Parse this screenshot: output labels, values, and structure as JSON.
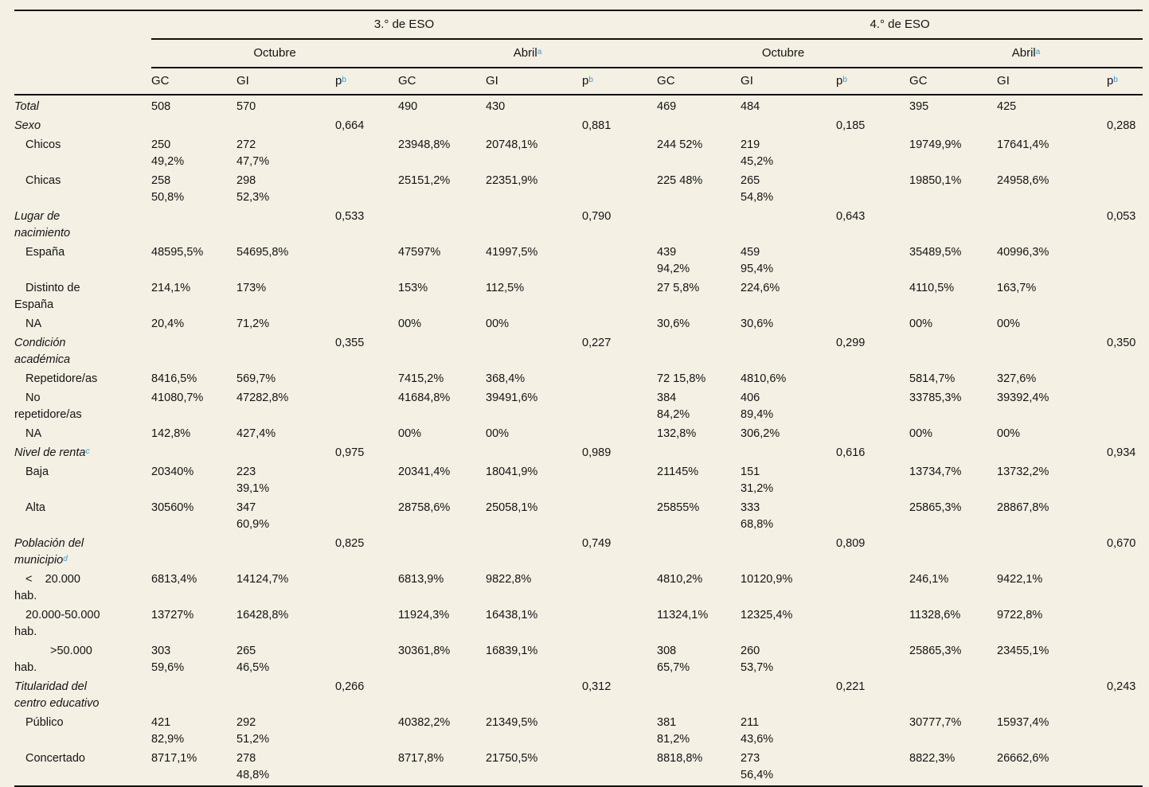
{
  "colors": {
    "background": "#f4f0e4",
    "footnote_blue": "#2f9fda",
    "rule_color": "#111111"
  },
  "table": {
    "groups": [
      {
        "label": "3.° de ESO"
      },
      {
        "label": "4.° de ESO"
      }
    ],
    "periods": [
      {
        "label": "Octubre",
        "sup": ""
      },
      {
        "label": "Abril",
        "sup": "a"
      },
      {
        "label": "Octubre",
        "sup": ""
      },
      {
        "label": "Abril",
        "sup": "a"
      }
    ],
    "subcols": {
      "gc": "GC",
      "gi": "GI",
      "p": "p",
      "p_sup": "b"
    },
    "rows": [
      {
        "label": "Total",
        "sup": "",
        "italic": true,
        "indent": 0,
        "cells": [
          "508",
          "570",
          "",
          "490",
          "430",
          "",
          "469",
          "484",
          "",
          "395",
          "425",
          ""
        ]
      },
      {
        "label": "Sexo",
        "sup": "",
        "italic": true,
        "indent": 0,
        "cells": [
          "",
          "",
          "0,664",
          "",
          "",
          "0,881",
          "",
          "",
          "0,185",
          "",
          "",
          "0,288"
        ]
      },
      {
        "label": "Chicos",
        "sup": "",
        "italic": false,
        "indent": 1,
        "cells": [
          "250\n49,2%",
          "272\n47,7%",
          "",
          "23948,8%",
          "20748,1%",
          "",
          "244 52%",
          "219\n45,2%",
          "",
          "19749,9%",
          "17641,4%",
          ""
        ]
      },
      {
        "label": "Chicas",
        "sup": "",
        "italic": false,
        "indent": 1,
        "cells": [
          "258\n50,8%",
          "298\n52,3%",
          "",
          "25151,2%",
          "22351,9%",
          "",
          "225 48%",
          "265\n54,8%",
          "",
          "19850,1%",
          "24958,6%",
          ""
        ]
      },
      {
        "label": "Lugar de\nnacimiento",
        "sup": "",
        "italic": true,
        "indent": 0,
        "cells": [
          "",
          "",
          "0,533",
          "",
          "",
          "0,790",
          "",
          "",
          "0,643",
          "",
          "",
          "0,053"
        ]
      },
      {
        "label": "España",
        "sup": "",
        "italic": false,
        "indent": 1,
        "cells": [
          "48595,5%",
          "54695,8%",
          "",
          "47597%",
          "41997,5%",
          "",
          "439\n94,2%",
          "459\n95,4%",
          "",
          "35489,5%",
          "40996,3%",
          ""
        ]
      },
      {
        "label": "Distinto de\nEspaña",
        "sup": "",
        "italic": false,
        "indent": 1,
        "cells": [
          "214,1%",
          "173%",
          "",
          "153%",
          "112,5%",
          "",
          "27 5,8%",
          "224,6%",
          "",
          "4110,5%",
          "163,7%",
          ""
        ]
      },
      {
        "label": "NA",
        "sup": "",
        "italic": false,
        "indent": 1,
        "cells": [
          "20,4%",
          "71,2%",
          "",
          "00%",
          "00%",
          "",
          "30,6%",
          "30,6%",
          "",
          "00%",
          "00%",
          ""
        ]
      },
      {
        "label": "Condición\nacadémica",
        "sup": "",
        "italic": true,
        "indent": 0,
        "cells": [
          "",
          "",
          "0,355",
          "",
          "",
          "0,227",
          "",
          "",
          "0,299",
          "",
          "",
          "0,350"
        ]
      },
      {
        "label": "Repetidore/as",
        "sup": "",
        "italic": false,
        "indent": 1,
        "cells": [
          "8416,5%",
          "569,7%",
          "",
          "7415,2%",
          "368,4%",
          "",
          "72 15,8%",
          "4810,6%",
          "",
          "5814,7%",
          "327,6%",
          ""
        ]
      },
      {
        "label": "No\nrepetidore/as",
        "sup": "",
        "italic": false,
        "indent": 1,
        "cells": [
          "41080,7%",
          "47282,8%",
          "",
          "41684,8%",
          "39491,6%",
          "",
          "384\n84,2%",
          "406\n89,4%",
          "",
          "33785,3%",
          "39392,4%",
          ""
        ]
      },
      {
        "label": "NA",
        "sup": "",
        "italic": false,
        "indent": 1,
        "cells": [
          "142,8%",
          "427,4%",
          "",
          "00%",
          "00%",
          "",
          "132,8%",
          "306,2%",
          "",
          "00%",
          "00%",
          ""
        ]
      },
      {
        "label": "Nivel de renta",
        "sup": "c",
        "italic": true,
        "indent": 0,
        "cells": [
          "",
          "",
          "0,975",
          "",
          "",
          "0,989",
          "",
          "",
          "0,616",
          "",
          "",
          "0,934"
        ]
      },
      {
        "label": "Baja",
        "sup": "",
        "italic": false,
        "indent": 1,
        "cells": [
          "20340%",
          "223\n39,1%",
          "",
          "20341,4%",
          "18041,9%",
          "",
          "21145%",
          "151\n31,2%",
          "",
          "13734,7%",
          "13732,2%",
          ""
        ]
      },
      {
        "label": "Alta",
        "sup": "",
        "italic": false,
        "indent": 1,
        "cells": [
          "30560%",
          "347\n60,9%",
          "",
          "28758,6%",
          "25058,1%",
          "",
          "25855%",
          "333\n68,8%",
          "",
          "25865,3%",
          "28867,8%",
          ""
        ]
      },
      {
        "label": "Población del\nmunicipio",
        "sup": "d",
        "italic": true,
        "indent": 0,
        "cells": [
          "",
          "",
          "0,825",
          "",
          "",
          "0,749",
          "",
          "",
          "0,809",
          "",
          "",
          "0,670"
        ]
      },
      {
        "label": "<    20.000\nhab.",
        "sup": "",
        "italic": false,
        "indent": 1,
        "cells": [
          "6813,4%",
          "14124,7%",
          "",
          "6813,9%",
          "9822,8%",
          "",
          "4810,2%",
          "10120,9%",
          "",
          "246,1%",
          "9422,1%",
          ""
        ]
      },
      {
        "label": "20.000-50.000\nhab.",
        "sup": "",
        "italic": false,
        "indent": 1,
        "cells": [
          "13727%",
          "16428,8%",
          "",
          "11924,3%",
          "16438,1%",
          "",
          "11324,1%",
          "12325,4%",
          "",
          "11328,6%",
          "9722,8%",
          ""
        ]
      },
      {
        "label": ">50.000\nhab.",
        "sup": "",
        "italic": false,
        "indent": 2,
        "cells": [
          "303\n59,6%",
          "265\n46,5%",
          "",
          "30361,8%",
          "16839,1%",
          "",
          "308\n65,7%",
          "260\n53,7%",
          "",
          "25865,3%",
          "23455,1%",
          ""
        ]
      },
      {
        "label": "Titularidad del\ncentro educativo",
        "sup": "",
        "italic": true,
        "indent": 0,
        "cells": [
          "",
          "",
          "0,266",
          "",
          "",
          "0,312",
          "",
          "",
          "0,221",
          "",
          "",
          "0,243"
        ]
      },
      {
        "label": "Público",
        "sup": "",
        "italic": false,
        "indent": 1,
        "cells": [
          "421\n82,9%",
          "292\n51,2%",
          "",
          "40382,2%",
          "21349,5%",
          "",
          "381\n81,2%",
          "211\n43,6%",
          "",
          "30777,7%",
          "15937,4%",
          ""
        ]
      },
      {
        "label": "Concertado",
        "sup": "",
        "italic": false,
        "indent": 1,
        "cells": [
          "8717,1%",
          "278\n48,8%",
          "",
          "8717,8%",
          "21750,5%",
          "",
          "8818,8%",
          "273\n56,4%",
          "",
          "8822,3%",
          "26662,6%",
          ""
        ]
      }
    ]
  }
}
